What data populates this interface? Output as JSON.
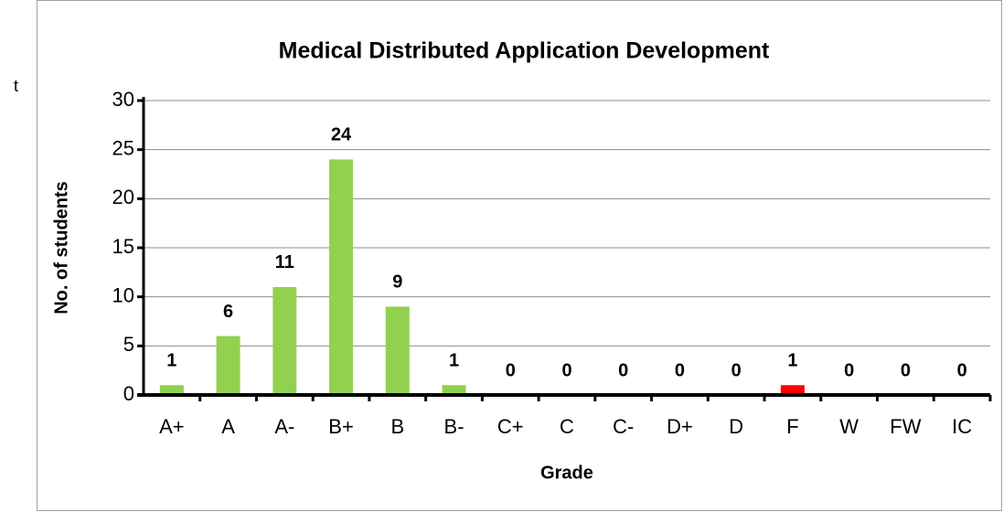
{
  "chart_data": {
    "type": "bar",
    "title": "Medical Distributed Application Development",
    "x_label": "Grade",
    "y_label": "No. of students",
    "annotations": [
      "t"
    ],
    "categories": [
      "A+",
      "A",
      "A-",
      "B+",
      "B",
      "B-",
      "C+",
      "C",
      "C-",
      "D+",
      "D",
      "F",
      "W",
      "FW",
      "IC"
    ],
    "values": [
      1,
      6,
      11,
      24,
      9,
      1,
      0,
      0,
      0,
      0,
      0,
      1,
      0,
      0,
      0
    ],
    "colors": [
      "#92d050",
      "#92d050",
      "#92d050",
      "#92d050",
      "#92d050",
      "#92d050",
      "#92d050",
      "#92d050",
      "#92d050",
      "#92d050",
      "#92d050",
      "#ff0000",
      "#92d050",
      "#92d050",
      "#92d050"
    ],
    "ylim": [
      0,
      30
    ],
    "yticks": [
      0,
      5,
      10,
      15,
      20,
      25,
      30
    ],
    "grid": true
  }
}
